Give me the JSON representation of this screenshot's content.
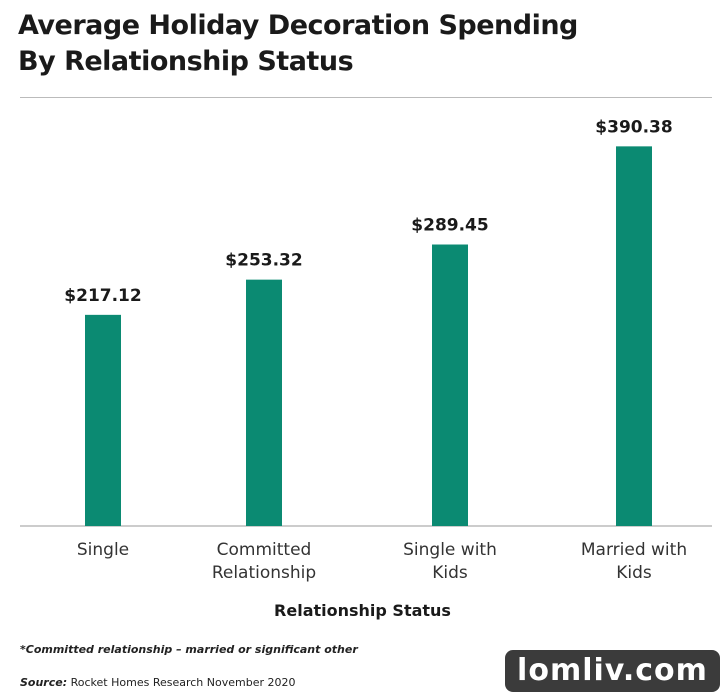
{
  "chart_data": {
    "type": "bar",
    "title": "Average Holiday Decoration Spending By Relationship Status",
    "x_label": "Relationship Status",
    "categories": [
      "Single",
      "Committed Relationship",
      "Single with Kids",
      "Married with Kids"
    ],
    "values": [
      217.12,
      253.32,
      289.45,
      390.38
    ],
    "value_labels": [
      "$217.12",
      "$253.32",
      "$289.45",
      "$390.38"
    ],
    "color": "#0b8a72",
    "ylim": [
      0,
      400
    ]
  },
  "footnote": "*Committed relationship – married or significant other",
  "source": {
    "label": "Source:",
    "text": "Rocket Homes Research November 2020"
  },
  "watermark": "lomliv.com"
}
